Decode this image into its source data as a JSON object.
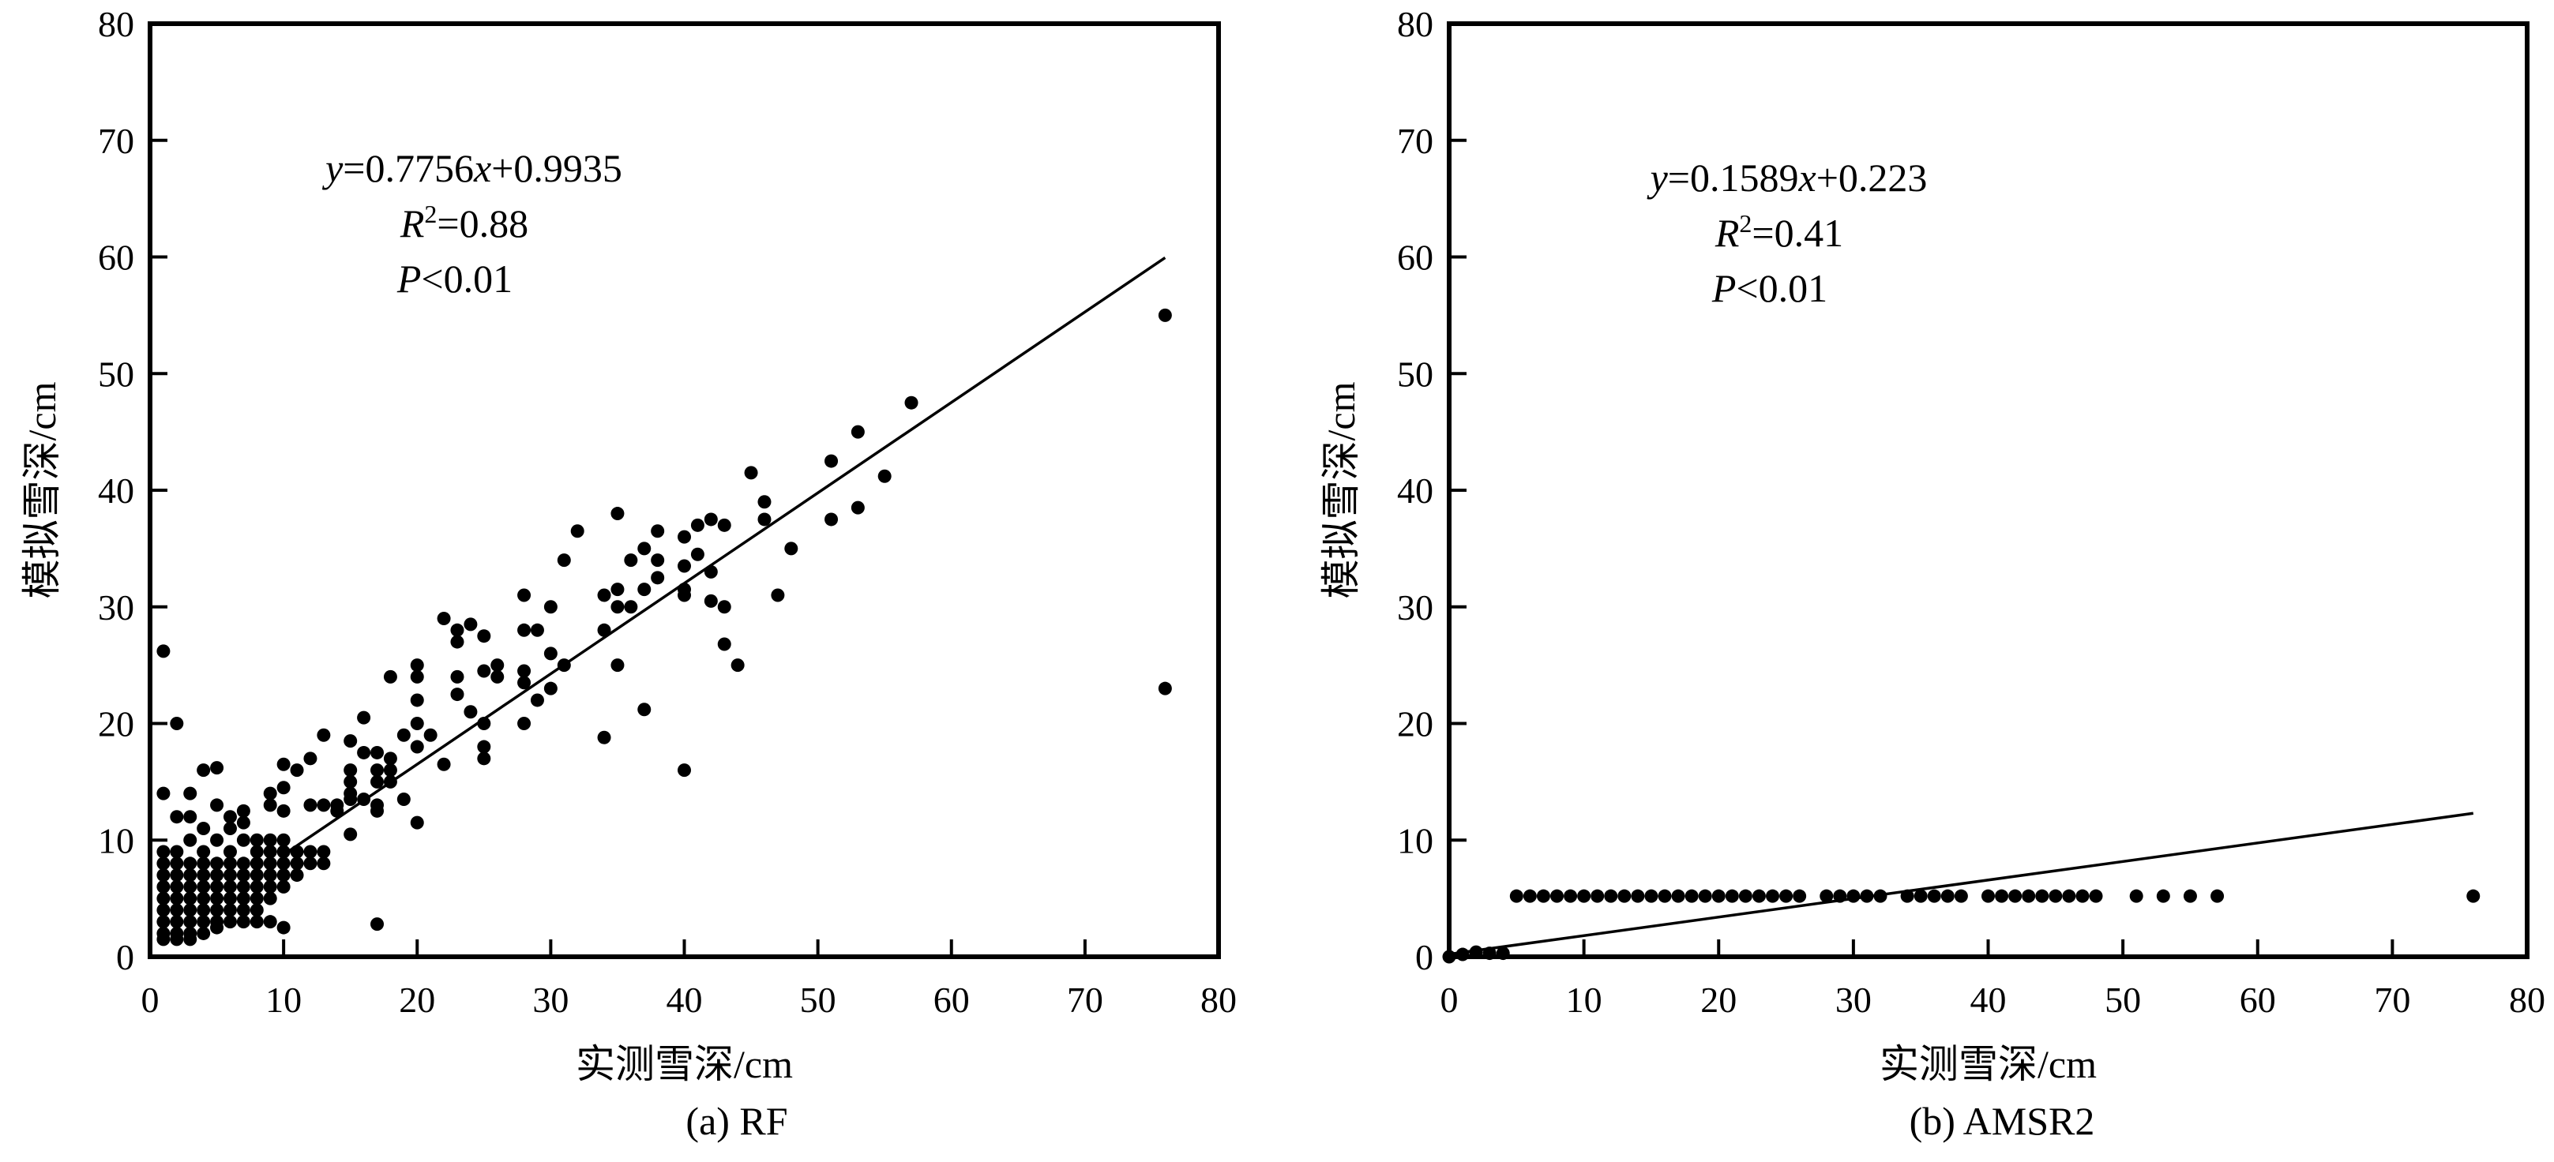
{
  "chart_data": [
    {
      "type": "scatter",
      "caption": "(a) RF",
      "xlabel": "实测雪深/cm",
      "ylabel": "模拟雪深/cm",
      "xlim": [
        0,
        80
      ],
      "ylim": [
        0,
        80
      ],
      "xticks": [
        0,
        10,
        20,
        30,
        40,
        50,
        60,
        70,
        80
      ],
      "yticks": [
        0,
        10,
        20,
        30,
        40,
        50,
        60,
        70,
        80
      ],
      "grid": false,
      "annotation": {
        "equation": {
          "y": "y",
          "eq": "=0.7756",
          "x": "x",
          "rest": "+0.9935"
        },
        "r2": {
          "r": "R",
          "sup": "2",
          "rest": "=0.88"
        },
        "p": {
          "p": "P",
          "rest": "<0.01"
        }
      },
      "fit": {
        "slope": 0.7756,
        "intercept": 0.9935,
        "x_range": [
          10,
          76
        ]
      },
      "points": [
        [
          1,
          26.2
        ],
        [
          1,
          14
        ],
        [
          2,
          20
        ],
        [
          1,
          9
        ],
        [
          1,
          8
        ],
        [
          1,
          7
        ],
        [
          1,
          6
        ],
        [
          1,
          5
        ],
        [
          1,
          4
        ],
        [
          1,
          3
        ],
        [
          1,
          2
        ],
        [
          1,
          1.5
        ],
        [
          2,
          9
        ],
        [
          2,
          8
        ],
        [
          2,
          7
        ],
        [
          2,
          6
        ],
        [
          2,
          5
        ],
        [
          2,
          4
        ],
        [
          2,
          3
        ],
        [
          2,
          2
        ],
        [
          2,
          1.5
        ],
        [
          2,
          12
        ],
        [
          3,
          14
        ],
        [
          3,
          12
        ],
        [
          3,
          10
        ],
        [
          3,
          8
        ],
        [
          3,
          7
        ],
        [
          3,
          6
        ],
        [
          3,
          5
        ],
        [
          3,
          4
        ],
        [
          3,
          3
        ],
        [
          3,
          2
        ],
        [
          3,
          1.5
        ],
        [
          4,
          16
        ],
        [
          4,
          11
        ],
        [
          4,
          9
        ],
        [
          4,
          8
        ],
        [
          4,
          7
        ],
        [
          4,
          6
        ],
        [
          4,
          5
        ],
        [
          4,
          4
        ],
        [
          4,
          3
        ],
        [
          4,
          2
        ],
        [
          5,
          16.2
        ],
        [
          5,
          13
        ],
        [
          5,
          10
        ],
        [
          5,
          8
        ],
        [
          5,
          7
        ],
        [
          5,
          6
        ],
        [
          5,
          5
        ],
        [
          5,
          4
        ],
        [
          5,
          3
        ],
        [
          5,
          2.5
        ],
        [
          6,
          12
        ],
        [
          6,
          11
        ],
        [
          6,
          9
        ],
        [
          6,
          8
        ],
        [
          6,
          7
        ],
        [
          6,
          6
        ],
        [
          6,
          5
        ],
        [
          6,
          4
        ],
        [
          6,
          3
        ],
        [
          7,
          12.5
        ],
        [
          7,
          11.5
        ],
        [
          7,
          10
        ],
        [
          7,
          8
        ],
        [
          7,
          7
        ],
        [
          7,
          6
        ],
        [
          7,
          5
        ],
        [
          7,
          4
        ],
        [
          7,
          3
        ],
        [
          8,
          10
        ],
        [
          8,
          9
        ],
        [
          8,
          8
        ],
        [
          8,
          7
        ],
        [
          8,
          6
        ],
        [
          8,
          5
        ],
        [
          8,
          4
        ],
        [
          8,
          3
        ],
        [
          9,
          14
        ],
        [
          9,
          13
        ],
        [
          9,
          10
        ],
        [
          9,
          9
        ],
        [
          9,
          8
        ],
        [
          9,
          7
        ],
        [
          9,
          6
        ],
        [
          9,
          5
        ],
        [
          9,
          3
        ],
        [
          10,
          16.5
        ],
        [
          10,
          14.5
        ],
        [
          10,
          12.5
        ],
        [
          10,
          10
        ],
        [
          10,
          9
        ],
        [
          10,
          8
        ],
        [
          10,
          7
        ],
        [
          10,
          6
        ],
        [
          10,
          2.5
        ],
        [
          11,
          16
        ],
        [
          11,
          9
        ],
        [
          11,
          8
        ],
        [
          11,
          7
        ],
        [
          12,
          17
        ],
        [
          12,
          13
        ],
        [
          12,
          9
        ],
        [
          12,
          8
        ],
        [
          13,
          19
        ],
        [
          13,
          13
        ],
        [
          13,
          9
        ],
        [
          13,
          8
        ],
        [
          14,
          13
        ],
        [
          14,
          12.5
        ],
        [
          15,
          18.5
        ],
        [
          15,
          16
        ],
        [
          15,
          15
        ],
        [
          15,
          14
        ],
        [
          15,
          13.5
        ],
        [
          15,
          10.5
        ],
        [
          16,
          20.5
        ],
        [
          16,
          17.5
        ],
        [
          16,
          13.5
        ],
        [
          17,
          17.5
        ],
        [
          17,
          16
        ],
        [
          17,
          15
        ],
        [
          17,
          13
        ],
        [
          17,
          12.5
        ],
        [
          17,
          2.8
        ],
        [
          18,
          24
        ],
        [
          18,
          17
        ],
        [
          18,
          16
        ],
        [
          18,
          15
        ],
        [
          19,
          19
        ],
        [
          19,
          13.5
        ],
        [
          20,
          25
        ],
        [
          20,
          24
        ],
        [
          20,
          22
        ],
        [
          20,
          20
        ],
        [
          20,
          18
        ],
        [
          20,
          11.5
        ],
        [
          21,
          19
        ],
        [
          22,
          29
        ],
        [
          22,
          16.5
        ],
        [
          23,
          28
        ],
        [
          23,
          27
        ],
        [
          23,
          24
        ],
        [
          23,
          22.5
        ],
        [
          24,
          28.5
        ],
        [
          24,
          21
        ],
        [
          25,
          27.5
        ],
        [
          25,
          24.5
        ],
        [
          25,
          20
        ],
        [
          25,
          18
        ],
        [
          25,
          17
        ],
        [
          26,
          25
        ],
        [
          26,
          24
        ],
        [
          28,
          31
        ],
        [
          28,
          28
        ],
        [
          28,
          24.5
        ],
        [
          28,
          23.5
        ],
        [
          28,
          20
        ],
        [
          29,
          28
        ],
        [
          29,
          22
        ],
        [
          30,
          30
        ],
        [
          30,
          26
        ],
        [
          30,
          23
        ],
        [
          31,
          34
        ],
        [
          31,
          25
        ],
        [
          32,
          36.5
        ],
        [
          34,
          31
        ],
        [
          34,
          28
        ],
        [
          34,
          18.8
        ],
        [
          35,
          38
        ],
        [
          35,
          31.5
        ],
        [
          35,
          30
        ],
        [
          35,
          25
        ],
        [
          36,
          34
        ],
        [
          36,
          30
        ],
        [
          37,
          35
        ],
        [
          37,
          31.5
        ],
        [
          37,
          21.2
        ],
        [
          38,
          36.5
        ],
        [
          38,
          34
        ],
        [
          38,
          32.5
        ],
        [
          40,
          36
        ],
        [
          40,
          33.5
        ],
        [
          40,
          31.5
        ],
        [
          40,
          31
        ],
        [
          40,
          16
        ],
        [
          41,
          37
        ],
        [
          41,
          34.5
        ],
        [
          42,
          37.5
        ],
        [
          42,
          33
        ],
        [
          42,
          30.5
        ],
        [
          43,
          37
        ],
        [
          43,
          30
        ],
        [
          43,
          26.8
        ],
        [
          44,
          25
        ],
        [
          45,
          41.5
        ],
        [
          46,
          39
        ],
        [
          46,
          37.5
        ],
        [
          47,
          31
        ],
        [
          48,
          35
        ],
        [
          51,
          42.5
        ],
        [
          51,
          37.5
        ],
        [
          53,
          45
        ],
        [
          53,
          38.5
        ],
        [
          55,
          41.2
        ],
        [
          57,
          47.5
        ],
        [
          76,
          55
        ],
        [
          76,
          23
        ]
      ]
    },
    {
      "type": "scatter",
      "caption": "(b) AMSR2",
      "xlabel": "实测雪深/cm",
      "ylabel": "模拟雪深/cm",
      "xlim": [
        0,
        80
      ],
      "ylim": [
        0,
        80
      ],
      "xticks": [
        0,
        10,
        20,
        30,
        40,
        50,
        60,
        70,
        80
      ],
      "yticks": [
        0,
        10,
        20,
        30,
        40,
        50,
        60,
        70,
        80
      ],
      "grid": false,
      "annotation": {
        "equation": {
          "y": "y",
          "eq": "=0.1589",
          "x": "x",
          "rest": "+0.223"
        },
        "r2": {
          "r": "R",
          "sup": "2",
          "rest": "=0.41"
        },
        "p": {
          "p": "P",
          "rest": "<0.01"
        }
      },
      "fit": {
        "slope": 0.1589,
        "intercept": 0.223,
        "x_range": [
          0,
          76
        ]
      },
      "points": [
        [
          0,
          0
        ],
        [
          1,
          0.2
        ],
        [
          2,
          0.4
        ],
        [
          3,
          0.3
        ],
        [
          4,
          0.3
        ],
        [
          5,
          5.2
        ],
        [
          6,
          5.2
        ],
        [
          7,
          5.2
        ],
        [
          8,
          5.2
        ],
        [
          9,
          5.2
        ],
        [
          10,
          5.2
        ],
        [
          11,
          5.2
        ],
        [
          12,
          5.2
        ],
        [
          13,
          5.2
        ],
        [
          14,
          5.2
        ],
        [
          15,
          5.2
        ],
        [
          16,
          5.2
        ],
        [
          17,
          5.2
        ],
        [
          18,
          5.2
        ],
        [
          19,
          5.2
        ],
        [
          20,
          5.2
        ],
        [
          21,
          5.2
        ],
        [
          22,
          5.2
        ],
        [
          23,
          5.2
        ],
        [
          24,
          5.2
        ],
        [
          25,
          5.2
        ],
        [
          26,
          5.2
        ],
        [
          28,
          5.2
        ],
        [
          29,
          5.2
        ],
        [
          30,
          5.2
        ],
        [
          31,
          5.2
        ],
        [
          32,
          5.2
        ],
        [
          34,
          5.2
        ],
        [
          35,
          5.2
        ],
        [
          36,
          5.2
        ],
        [
          37,
          5.2
        ],
        [
          38,
          5.2
        ],
        [
          40,
          5.2
        ],
        [
          41,
          5.2
        ],
        [
          42,
          5.2
        ],
        [
          43,
          5.2
        ],
        [
          44,
          5.2
        ],
        [
          45,
          5.2
        ],
        [
          46,
          5.2
        ],
        [
          47,
          5.2
        ],
        [
          48,
          5.2
        ],
        [
          51,
          5.2
        ],
        [
          53,
          5.2
        ],
        [
          55,
          5.2
        ],
        [
          57,
          5.2
        ],
        [
          76,
          5.2
        ]
      ]
    }
  ]
}
